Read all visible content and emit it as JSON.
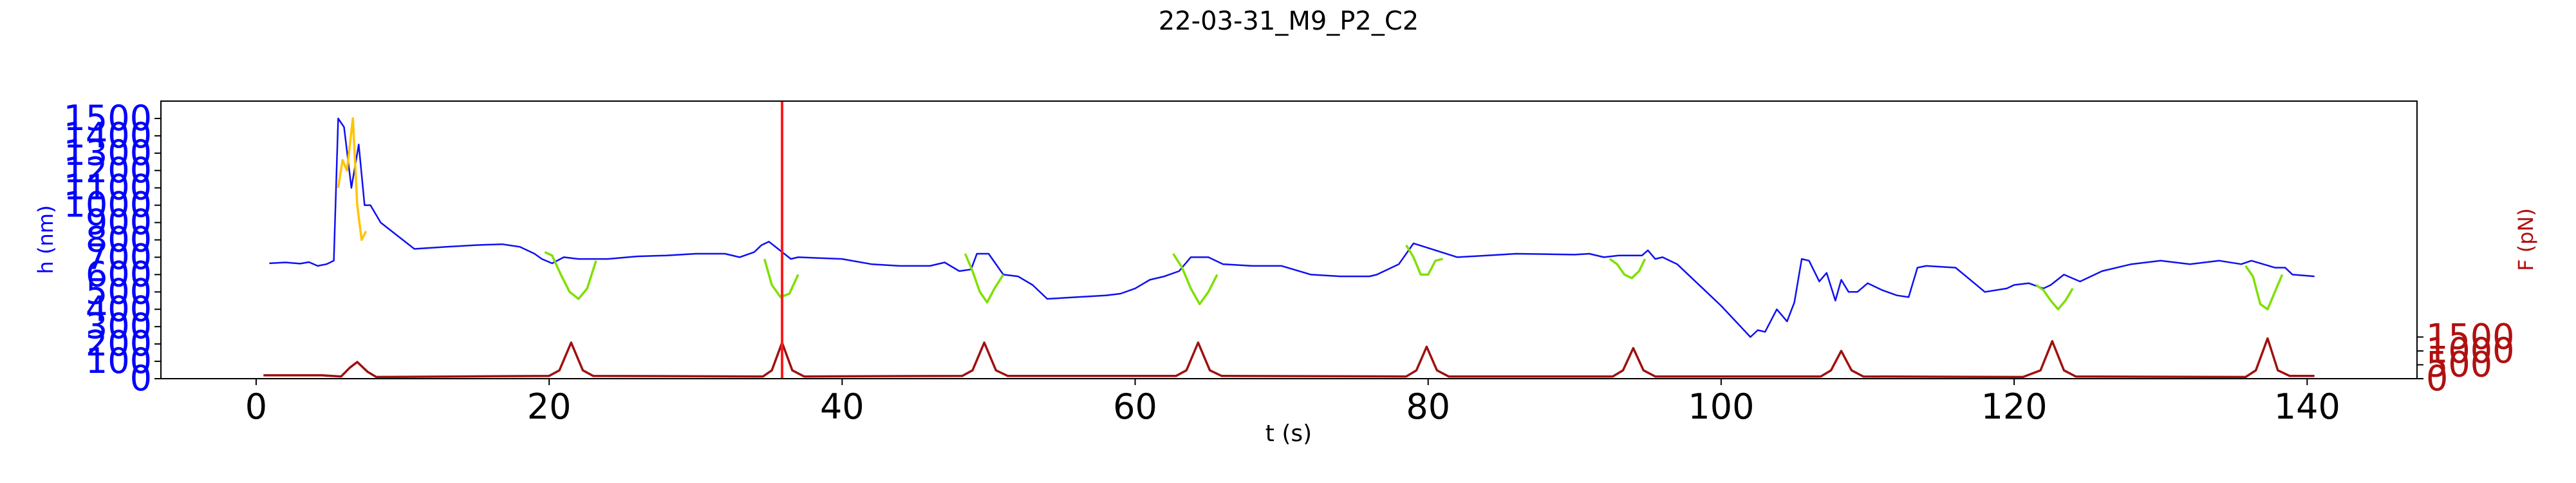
{
  "chart_data": {
    "type": "line",
    "title": "22-03-31_M9_P2_C2",
    "xlabel": "t (s)",
    "ylabel_left": "h (nm)",
    "ylabel_right": "F (pN)",
    "xlim": [
      -6.5,
      147.5
    ],
    "ylim_left": [
      0,
      1600
    ],
    "ylim_right": [
      0,
      10000
    ],
    "x_ticks": [
      0,
      20,
      40,
      60,
      80,
      100,
      120,
      140
    ],
    "x_tick_labels": [
      "0",
      "20",
      "40",
      "60",
      "80",
      "100",
      "120",
      "140"
    ],
    "y_left_ticks": [
      0,
      100,
      200,
      300,
      400,
      500,
      600,
      700,
      800,
      900,
      1000,
      1100,
      1200,
      1300,
      1400,
      1500
    ],
    "y_left_tick_labels": [
      "0",
      "100",
      "200",
      "300",
      "400",
      "500",
      "600",
      "700",
      "800",
      "900",
      "1000",
      "1100",
      "1200",
      "1300",
      "1400",
      "1500"
    ],
    "y_right_ticks": [
      0,
      500,
      1000,
      1500
    ],
    "y_right_tick_labels": [
      "0",
      "500",
      "1000",
      "1500"
    ],
    "colors": {
      "height_trace": "#1010f0",
      "height_compression": "#7fe000",
      "height_highlight": "#ffc400",
      "force_trace": "#a01010",
      "vertical_marker": "#ff1a1a",
      "left_axis_text": "#0000ff",
      "right_axis_text": "#b01010"
    },
    "vertical_marker_x": 35.9,
    "series": [
      {
        "axis": "left",
        "color_key": "height_trace",
        "x": [
          0.9,
          2.0,
          3.0,
          3.6,
          4.2,
          4.8,
          5.3,
          5.6,
          6.0,
          6.5,
          7.0,
          7.4,
          7.8,
          8.5,
          10.8,
          13.0,
          15.0,
          16.8,
          18.0,
          19.0,
          19.5,
          20.2,
          21.0,
          22.0,
          24.0,
          26.0,
          28.0,
          30.0,
          32.0,
          33.0,
          34.0,
          34.5,
          35.0,
          36.5,
          37.0,
          38.5,
          40.0,
          42.0,
          44.0,
          46.0,
          47.0,
          48.0,
          48.8,
          49.2,
          50.0,
          51.0,
          52.0,
          53.0,
          54.0,
          56.0,
          58.0,
          59.0,
          60.0,
          61.0,
          62.0,
          63.0,
          63.8,
          65.0,
          66.0,
          68.0,
          70.0,
          72.0,
          74.0,
          76.0,
          76.5,
          77.0,
          78.0,
          79.0,
          82.0,
          84.0,
          86.0,
          88.0,
          90.0,
          91.0,
          92.0,
          93.0,
          94.6,
          95.0,
          95.5,
          96.0,
          97.0,
          98.0,
          99.0,
          100.0,
          101.0,
          102.0,
          102.5,
          103.0,
          103.8,
          104.5,
          105.0,
          105.5,
          106.0,
          106.7,
          107.2,
          107.8,
          108.2,
          108.7,
          109.3,
          110.0,
          111.0,
          112.0,
          112.8,
          113.4,
          114.0,
          116.0,
          118.0,
          119.5,
          120.0,
          121.0,
          122.0,
          122.5,
          123.4,
          124.5,
          126.0,
          128.0,
          130.0,
          132.0,
          134.0,
          135.5,
          136.2,
          137.8,
          138.5,
          139.0,
          140.5
        ],
        "y": [
          665,
          670,
          663,
          672,
          650,
          660,
          680,
          1500,
          1450,
          1100,
          1350,
          1000,
          1000,
          900,
          748,
          760,
          770,
          775,
          760,
          720,
          690,
          665,
          700,
          690,
          690,
          705,
          710,
          720,
          720,
          700,
          730,
          770,
          790,
          690,
          700,
          695,
          690,
          660,
          650,
          650,
          670,
          620,
          630,
          720,
          720,
          600,
          590,
          540,
          460,
          470,
          480,
          490,
          520,
          570,
          590,
          620,
          700,
          700,
          660,
          650,
          650,
          600,
          590,
          590,
          600,
          620,
          660,
          780,
          700,
          710,
          720,
          718,
          715,
          720,
          700,
          710,
          710,
          740,
          690,
          700,
          660,
          580,
          500,
          420,
          330,
          240,
          280,
          270,
          400,
          330,
          440,
          690,
          680,
          560,
          610,
          450,
          570,
          500,
          500,
          550,
          510,
          480,
          470,
          640,
          650,
          640,
          500,
          520,
          540,
          550,
          520,
          540,
          600,
          560,
          620,
          660,
          680,
          660,
          680,
          660,
          680,
          640,
          640,
          600,
          590
        ]
      },
      {
        "axis": "left",
        "color_key": "height_highlight",
        "x": [
          5.6,
          5.9,
          6.2,
          6.6,
          6.9,
          7.2,
          7.5
        ],
        "y": [
          1100,
          1260,
          1200,
          1500,
          1000,
          800,
          850
        ]
      },
      {
        "axis": "left",
        "color_key": "height_compression",
        "x": [
          [
            19.7,
            20.2,
            20.8,
            21.4,
            22.0,
            22.6,
            23.2
          ],
          [
            34.7,
            35.2,
            35.8,
            36.4,
            37.0
          ],
          [
            48.4,
            48.9,
            49.4,
            49.9,
            50.4,
            51.0
          ],
          [
            62.6,
            63.2,
            63.8,
            64.4,
            65.0,
            65.6
          ],
          [
            78.5,
            79.0,
            79.5,
            80.0,
            80.5,
            81.0
          ],
          [
            92.4,
            92.9,
            93.4,
            93.9,
            94.4,
            94.8
          ],
          [
            121.5,
            122.0,
            122.5,
            123.0,
            123.5,
            124.0
          ],
          [
            135.8,
            136.3,
            136.8,
            137.3,
            137.8,
            138.3
          ]
        ],
        "y": [
          [
            730,
            710,
            600,
            500,
            460,
            520,
            680
          ],
          [
            690,
            540,
            470,
            490,
            600
          ],
          [
            720,
            620,
            500,
            440,
            520,
            600
          ],
          [
            720,
            640,
            520,
            430,
            500,
            600
          ],
          [
            770,
            700,
            600,
            600,
            680,
            690
          ],
          [
            690,
            660,
            600,
            580,
            620,
            690
          ],
          [
            540,
            510,
            450,
            400,
            450,
            520
          ],
          [
            650,
            590,
            430,
            400,
            500,
            600
          ]
        ]
      },
      {
        "axis": "right",
        "color_key": "force_trace",
        "x": [
          0.5,
          4.5,
          5.8,
          6.4,
          6.9,
          7.6,
          8.2,
          20.0,
          20.7,
          21.5,
          22.3,
          23.0,
          34.6,
          35.2,
          35.9,
          36.6,
          37.4,
          48.2,
          48.9,
          49.7,
          50.5,
          51.3,
          62.8,
          63.5,
          64.3,
          65.1,
          65.9,
          78.5,
          79.2,
          79.9,
          80.6,
          81.4,
          92.6,
          93.3,
          94.0,
          94.7,
          95.5,
          106.8,
          107.5,
          108.2,
          108.9,
          109.7,
          120.6,
          121.8,
          122.6,
          123.4,
          124.2,
          135.8,
          136.5,
          137.3,
          138.0,
          138.8,
          140.5
        ],
        "y": [
          120,
          120,
          80,
          400,
          600,
          250,
          60,
          100,
          300,
          1300,
          300,
          100,
          80,
          300,
          1300,
          300,
          80,
          100,
          300,
          1300,
          300,
          100,
          100,
          300,
          1300,
          300,
          100,
          80,
          300,
          1150,
          300,
          80,
          80,
          300,
          1100,
          300,
          80,
          80,
          300,
          1000,
          300,
          80,
          60,
          300,
          1350,
          300,
          80,
          60,
          300,
          1450,
          300,
          100,
          100
        ]
      }
    ]
  }
}
